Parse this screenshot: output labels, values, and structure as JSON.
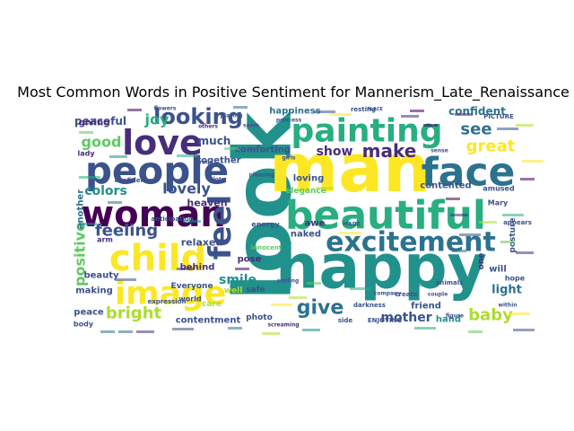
{
  "figure": {
    "title": "Most Common Words in Positive Sentiment for Mannerism_Late_Renaissance"
  },
  "palette": [
    "#440154",
    "#472d7b",
    "#3b528b",
    "#2c728e",
    "#21918c",
    "#28ae80",
    "#5ec962",
    "#addc30",
    "#fde725"
  ],
  "words": [
    {
      "text": "look",
      "color": "#21918c",
      "rotate": -90
    },
    {
      "text": "man",
      "color": "#fde725",
      "rotate": 0
    },
    {
      "text": "happy",
      "color": "#21918c",
      "rotate": 0
    },
    {
      "text": "face",
      "color": "#2c728e",
      "rotate": 0
    },
    {
      "text": "beautiful",
      "color": "#28ae80",
      "rotate": 0
    },
    {
      "text": "painting",
      "color": "#28ae80",
      "rotate": 0
    },
    {
      "text": "people",
      "color": "#3b528b",
      "rotate": 0
    },
    {
      "text": "woman",
      "color": "#440154",
      "rotate": 0
    },
    {
      "text": "child",
      "color": "#fde725",
      "rotate": 0
    },
    {
      "text": "image",
      "color": "#fde725",
      "rotate": 0
    },
    {
      "text": "love",
      "color": "#472d7b",
      "rotate": 0
    },
    {
      "text": "feel",
      "color": "#3b528b",
      "rotate": -90
    },
    {
      "text": "excitement",
      "color": "#2c728e",
      "rotate": 0
    },
    {
      "text": "looking",
      "color": "#3b528b",
      "rotate": 0
    },
    {
      "text": "make",
      "color": "#472d7b",
      "rotate": 0
    },
    {
      "text": "give",
      "color": "#2c728e",
      "rotate": 0
    },
    {
      "text": "positive",
      "color": "#5ec962",
      "rotate": -90
    },
    {
      "text": "great",
      "color": "#fde725",
      "rotate": 0
    },
    {
      "text": "see",
      "color": "#2c728e",
      "rotate": 0
    },
    {
      "text": "baby",
      "color": "#addc30",
      "rotate": 0
    },
    {
      "text": "bright",
      "color": "#addc30",
      "rotate": 0
    },
    {
      "text": "feeling",
      "color": "#3b528b",
      "rotate": 0
    },
    {
      "text": "good",
      "color": "#5ec962",
      "rotate": 0
    },
    {
      "text": "joy",
      "color": "#28ae80",
      "rotate": 0
    },
    {
      "text": "lovely",
      "color": "#3b528b",
      "rotate": 0
    },
    {
      "text": "colors",
      "color": "#21918c",
      "rotate": 0
    },
    {
      "text": "show",
      "color": "#472d7b",
      "rotate": 0
    },
    {
      "text": "mother",
      "color": "#3b528b",
      "rotate": 0
    },
    {
      "text": "confident",
      "color": "#2c728e",
      "rotate": 0
    },
    {
      "text": "light",
      "color": "#2c728e",
      "rotate": 0
    },
    {
      "text": "smile",
      "color": "#21918c",
      "rotate": 0
    },
    {
      "text": "much",
      "color": "#3b528b",
      "rotate": 0
    },
    {
      "text": "peaceful",
      "color": "#3b528b",
      "rotate": 0
    },
    {
      "text": "happiness",
      "color": "#2c728e",
      "rotate": 0
    },
    {
      "text": "comforting",
      "color": "#3b528b",
      "rotate": 0
    },
    {
      "text": "relaxed",
      "color": "#3b528b",
      "rotate": 0
    },
    {
      "text": "heaven",
      "color": "#472d7b",
      "rotate": 0
    },
    {
      "text": "together",
      "color": "#3b528b",
      "rotate": 0
    },
    {
      "text": "behind",
      "color": "#472d7b",
      "rotate": 0
    },
    {
      "text": "making",
      "color": "#3b528b",
      "rotate": 0
    },
    {
      "text": "beauty",
      "color": "#3b528b",
      "rotate": 0
    },
    {
      "text": "peace",
      "color": "#3b528b",
      "rotate": 0
    },
    {
      "text": "contentment",
      "color": "#3b528b",
      "rotate": 0
    },
    {
      "text": "giving",
      "color": "#472d7b",
      "rotate": 0
    },
    {
      "text": "another",
      "color": "#2c728e",
      "rotate": -90
    },
    {
      "text": "loving",
      "color": "#3b528b",
      "rotate": 0
    },
    {
      "text": "awe",
      "color": "#472d7b",
      "rotate": 0
    },
    {
      "text": "naked",
      "color": "#3b528b",
      "rotate": 0
    },
    {
      "text": "contented",
      "color": "#3b528b",
      "rotate": 0
    },
    {
      "text": "pose",
      "color": "#472d7b",
      "rotate": 0
    },
    {
      "text": "care",
      "color": "#addc30",
      "rotate": 0
    },
    {
      "text": "well",
      "color": "#addc30",
      "rotate": 0
    },
    {
      "text": "safe",
      "color": "#3b528b",
      "rotate": 0
    },
    {
      "text": "photo",
      "color": "#3b528b",
      "rotate": 0
    },
    {
      "text": "will",
      "color": "#3b528b",
      "rotate": 0
    },
    {
      "text": "hand",
      "color": "#21918c",
      "rotate": 0
    },
    {
      "text": "friend",
      "color": "#3b528b",
      "rotate": 0
    },
    {
      "text": "one",
      "color": "#472d7b",
      "rotate": -90
    },
    {
      "text": "hope",
      "color": "#3b528b",
      "rotate": 0
    },
    {
      "text": "Everyone",
      "color": "#3b528b",
      "rotate": 0
    },
    {
      "text": "lady",
      "color": "#472d7b",
      "rotate": 0
    },
    {
      "text": "elegance",
      "color": "#5ec962",
      "rotate": 0
    },
    {
      "text": "energy",
      "color": "#3b528b",
      "rotate": 0
    },
    {
      "text": "body",
      "color": "#3b528b",
      "rotate": 0
    },
    {
      "text": "world",
      "color": "#3b528b",
      "rotate": 0
    },
    {
      "text": "arm",
      "color": "#472d7b",
      "rotate": 0
    },
    {
      "text": "amused",
      "color": "#3b528b",
      "rotate": 0
    },
    {
      "text": "Mary",
      "color": "#3b528b",
      "rotate": 0
    },
    {
      "text": "posture",
      "color": "#3b528b",
      "rotate": -90
    },
    {
      "text": "appears",
      "color": "#3b528b",
      "rotate": 0
    },
    {
      "text": "resting",
      "color": "#3b528b",
      "rotate": 0
    },
    {
      "text": "anticipation",
      "color": "#3b528b",
      "rotate": 0
    },
    {
      "text": "confidence",
      "color": "#3b528b",
      "rotate": 0
    },
    {
      "text": "expression",
      "color": "#3b528b",
      "rotate": 0
    },
    {
      "text": "darkness",
      "color": "#3b528b",
      "rotate": 0
    },
    {
      "text": "animals",
      "color": "#3b528b",
      "rotate": 0
    },
    {
      "text": "create",
      "color": "#3b528b",
      "rotate": 0
    },
    {
      "text": "side",
      "color": "#3b528b",
      "rotate": 0
    },
    {
      "text": "ENJOYING",
      "color": "#3b528b",
      "rotate": 0
    },
    {
      "text": "screaming",
      "color": "#472d7b",
      "rotate": 0
    },
    {
      "text": "PICTURE",
      "color": "#3b528b",
      "rotate": 0
    },
    {
      "text": "flowers",
      "color": "#3b528b",
      "rotate": 0
    },
    {
      "text": "others",
      "color": "#472d7b",
      "rotate": 0
    },
    {
      "text": "seem",
      "color": "#3b528b",
      "rotate": 0
    },
    {
      "text": "MADE",
      "color": "#3b528b",
      "rotate": 0
    },
    {
      "text": "couple",
      "color": "#3b528b",
      "rotate": 0
    },
    {
      "text": "figure",
      "color": "#3b528b",
      "rotate": 0
    },
    {
      "text": "within",
      "color": "#3b528b",
      "rotate": 0
    },
    {
      "text": "sense",
      "color": "#3b528b",
      "rotate": 0
    },
    {
      "text": "playing",
      "color": "#3b528b",
      "rotate": 0
    },
    {
      "text": "girls",
      "color": "#3b528b",
      "rotate": 0
    },
    {
      "text": "lots",
      "color": "#3b528b",
      "rotate": 0
    },
    {
      "text": "proud",
      "color": "#3b528b",
      "rotate": 0
    },
    {
      "text": "innocent",
      "color": "#5ec962",
      "rotate": 0
    },
    {
      "text": "company",
      "color": "#3b528b",
      "rotate": 0
    },
    {
      "text": "pleasing",
      "color": "#3b528b",
      "rotate": 0
    },
    {
      "text": "princess",
      "color": "#3b528b",
      "rotate": 0
    },
    {
      "text": "smiling",
      "color": "#3b528b",
      "rotate": 0
    },
    {
      "text": "PLACE",
      "color": "#3b528b",
      "rotate": 0
    }
  ]
}
